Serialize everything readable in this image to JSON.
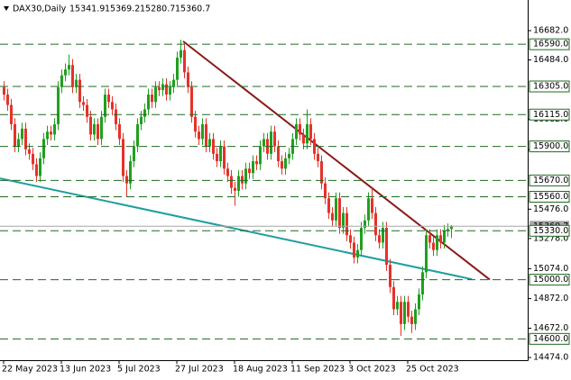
{
  "chart_data": {
    "type": "candlestick",
    "title": "DAX30,Daily",
    "open": [
      16300,
      16250,
      16180,
      16050,
      15900,
      15950,
      16020,
      15880,
      15850,
      15780,
      15700,
      15820,
      15950,
      16000,
      15980,
      16050,
      16300,
      16380,
      16420,
      16450,
      16300,
      16350,
      16200,
      16180,
      16100,
      15980,
      16050,
      15950,
      16100,
      16250,
      16200,
      16150,
      16050,
      15950,
      15700,
      15650,
      15800,
      15900,
      16050,
      16100,
      16150,
      16250,
      16200,
      16300,
      16280,
      16320,
      16250,
      16300,
      16350,
      16500,
      16550,
      16400,
      16300,
      16100,
      16000,
      15950,
      16050,
      15900,
      15950,
      15850,
      15800,
      15900,
      15750,
      15700,
      15620,
      15600,
      15700,
      15650,
      15750,
      15720,
      15800,
      15780,
      15900,
      15950,
      15850,
      16000,
      15900,
      15800,
      15750,
      15820,
      15850,
      15950,
      16050,
      15980,
      15920,
      16050,
      15950,
      15850,
      15800,
      15650,
      15550,
      15450,
      15400,
      15550,
      15350,
      15450,
      15300,
      15250,
      15150,
      15200,
      15350,
      15400,
      15550,
      15450,
      15300,
      15250,
      15350,
      15100,
      14950,
      14800,
      14850,
      14700,
      14850,
      14750,
      14700,
      14800,
      14900,
      15050,
      15300,
      15250,
      15200,
      15300,
      15250,
      15330,
      15341.9
    ],
    "high": [
      16340,
      16290,
      16220,
      16090,
      15990,
      16060,
      16060,
      15920,
      15890,
      15820,
      15860,
      15990,
      16040,
      16040,
      16090,
      16340,
      16420,
      16460,
      16520,
      16490,
      16390,
      16390,
      16240,
      16220,
      16140,
      16090,
      16090,
      16140,
      16290,
      16290,
      16240,
      16190,
      16090,
      15990,
      15740,
      15840,
      15940,
      16090,
      16140,
      16190,
      16290,
      16290,
      16340,
      16340,
      16360,
      16360,
      16340,
      16390,
      16540,
      16620,
      16590,
      16440,
      16340,
      16140,
      16040,
      16090,
      16090,
      15990,
      15990,
      15890,
      15940,
      15940,
      15790,
      15740,
      15660,
      15740,
      15740,
      15790,
      15790,
      15840,
      15840,
      15940,
      15990,
      15990,
      16040,
      16040,
      15940,
      15840,
      15860,
      15890,
      15990,
      16090,
      16090,
      16020,
      16150,
      16090,
      15990,
      15890,
      15840,
      15690,
      15590,
      15490,
      15590,
      15590,
      15490,
      15490,
      15340,
      15290,
      15240,
      15390,
      15440,
      15590,
      15620,
      15490,
      15340,
      15390,
      15390,
      15140,
      14990,
      14890,
      14890,
      14890,
      14890,
      14790,
      14840,
      14940,
      15090,
      15340,
      15340,
      15290,
      15340,
      15340,
      15370,
      15380,
      15369.2
    ],
    "low": [
      16210,
      16140,
      16010,
      15860,
      15860,
      15910,
      15840,
      15810,
      15740,
      15660,
      15660,
      15780,
      15910,
      15940,
      15940,
      16010,
      16260,
      16340,
      16380,
      16260,
      16260,
      16160,
      16140,
      16060,
      15940,
      15940,
      15910,
      15910,
      16060,
      16160,
      16110,
      16010,
      15910,
      15660,
      15560,
      15610,
      15760,
      15860,
      16010,
      16060,
      16110,
      16160,
      16160,
      16240,
      16240,
      16210,
      16210,
      16260,
      16310,
      16460,
      16360,
      16260,
      16060,
      15960,
      15910,
      15910,
      15860,
      15860,
      15810,
      15760,
      15760,
      15710,
      15660,
      15580,
      15500,
      15560,
      15610,
      15610,
      15680,
      15680,
      15740,
      15740,
      15860,
      15810,
      15810,
      15860,
      15760,
      15710,
      15710,
      15780,
      15810,
      15910,
      15940,
      15880,
      15880,
      15910,
      15810,
      15760,
      15610,
      15510,
      15410,
      15360,
      15360,
      15310,
      15310,
      15260,
      15210,
      15110,
      15110,
      15160,
      15310,
      15360,
      15410,
      15260,
      15210,
      15210,
      15060,
      14910,
      14760,
      14760,
      14620,
      14660,
      14710,
      14640,
      14660,
      14760,
      14860,
      15010,
      15210,
      15160,
      15160,
      15210,
      15210,
      15290,
      15280.7
    ],
    "close": [
      16250,
      16180,
      16050,
      15900,
      15950,
      16020,
      15880,
      15850,
      15780,
      15700,
      15820,
      15950,
      16000,
      15980,
      16050,
      16300,
      16380,
      16420,
      16450,
      16300,
      16350,
      16200,
      16180,
      16100,
      15980,
      16050,
      15950,
      16100,
      16250,
      16200,
      16150,
      16050,
      15950,
      15700,
      15650,
      15800,
      15900,
      16050,
      16100,
      16150,
      16250,
      16200,
      16300,
      16280,
      16320,
      16250,
      16300,
      16350,
      16500,
      16550,
      16400,
      16300,
      16100,
      16000,
      15950,
      16050,
      15900,
      15950,
      15850,
      15800,
      15900,
      15750,
      15700,
      15620,
      15600,
      15700,
      15650,
      15750,
      15720,
      15800,
      15780,
      15900,
      15950,
      15850,
      16000,
      15900,
      15800,
      15750,
      15820,
      15850,
      15950,
      16050,
      15980,
      15920,
      16050,
      15950,
      15850,
      15800,
      15650,
      15550,
      15450,
      15400,
      15550,
      15350,
      15450,
      15300,
      15250,
      15150,
      15200,
      15350,
      15400,
      15550,
      15450,
      15300,
      15250,
      15350,
      15100,
      14950,
      14800,
      14850,
      14700,
      14850,
      14750,
      14700,
      14800,
      14900,
      15050,
      15300,
      15250,
      15200,
      15300,
      15250,
      15330,
      15341.9,
      15360.7
    ],
    "up_color": "#1fa01f",
    "down_color": "#e5322a",
    "x_labels": [
      {
        "index": 0,
        "label": "22 May 2023"
      },
      {
        "index": 16,
        "label": "13 Jun 2023"
      },
      {
        "index": 32,
        "label": "5 Jul 2023"
      },
      {
        "index": 48,
        "label": "27 Jul 2023"
      },
      {
        "index": 64,
        "label": "18 Aug 2023"
      },
      {
        "index": 80,
        "label": "11 Sep 2023"
      },
      {
        "index": 96,
        "label": "3 Oct 2023"
      },
      {
        "index": 112,
        "label": "25 Oct 2023"
      }
    ],
    "ylim": [
      14456,
      16889
    ],
    "yticks": [
      {
        "value": 16682,
        "label": "16682.0"
      },
      {
        "value": 16484,
        "label": "16484.0"
      },
      {
        "value": 16082,
        "label": "16082.0"
      },
      {
        "value": 15878,
        "label": "15878.0"
      },
      {
        "value": 15476,
        "label": "15476.0"
      },
      {
        "value": 15278,
        "label": "15278.0"
      },
      {
        "value": 15074,
        "label": "15074.0"
      },
      {
        "value": 14872,
        "label": "14872.0"
      },
      {
        "value": 14672,
        "label": "14672.0"
      },
      {
        "value": 14474,
        "label": "14474.0"
      }
    ],
    "levels": [
      {
        "value": 16590,
        "label": "16590.0"
      },
      {
        "value": 16305,
        "label": "16305.0"
      },
      {
        "value": 16115,
        "label": "16115.0"
      },
      {
        "value": 15900,
        "label": "15900.0"
      },
      {
        "value": 15670,
        "label": "15670.0"
      },
      {
        "value": 15560,
        "label": "15560.0"
      },
      {
        "value": 15330,
        "label": "15330.0"
      },
      {
        "value": 15000,
        "label": "15000.0"
      },
      {
        "value": 14600,
        "label": "14600.0"
      }
    ],
    "level_color": "#1e6b1e",
    "trendlines": [
      {
        "color": "#8b1a1a",
        "x": [
          49.75,
          134.75
        ],
        "y": [
          16610,
          15000
        ]
      },
      {
        "color": "#1f9e9e",
        "x": [
          -1,
          129.75
        ],
        "y": [
          15684,
          15003
        ]
      }
    ],
    "last_price_color": "#a8a8a8"
  }
}
